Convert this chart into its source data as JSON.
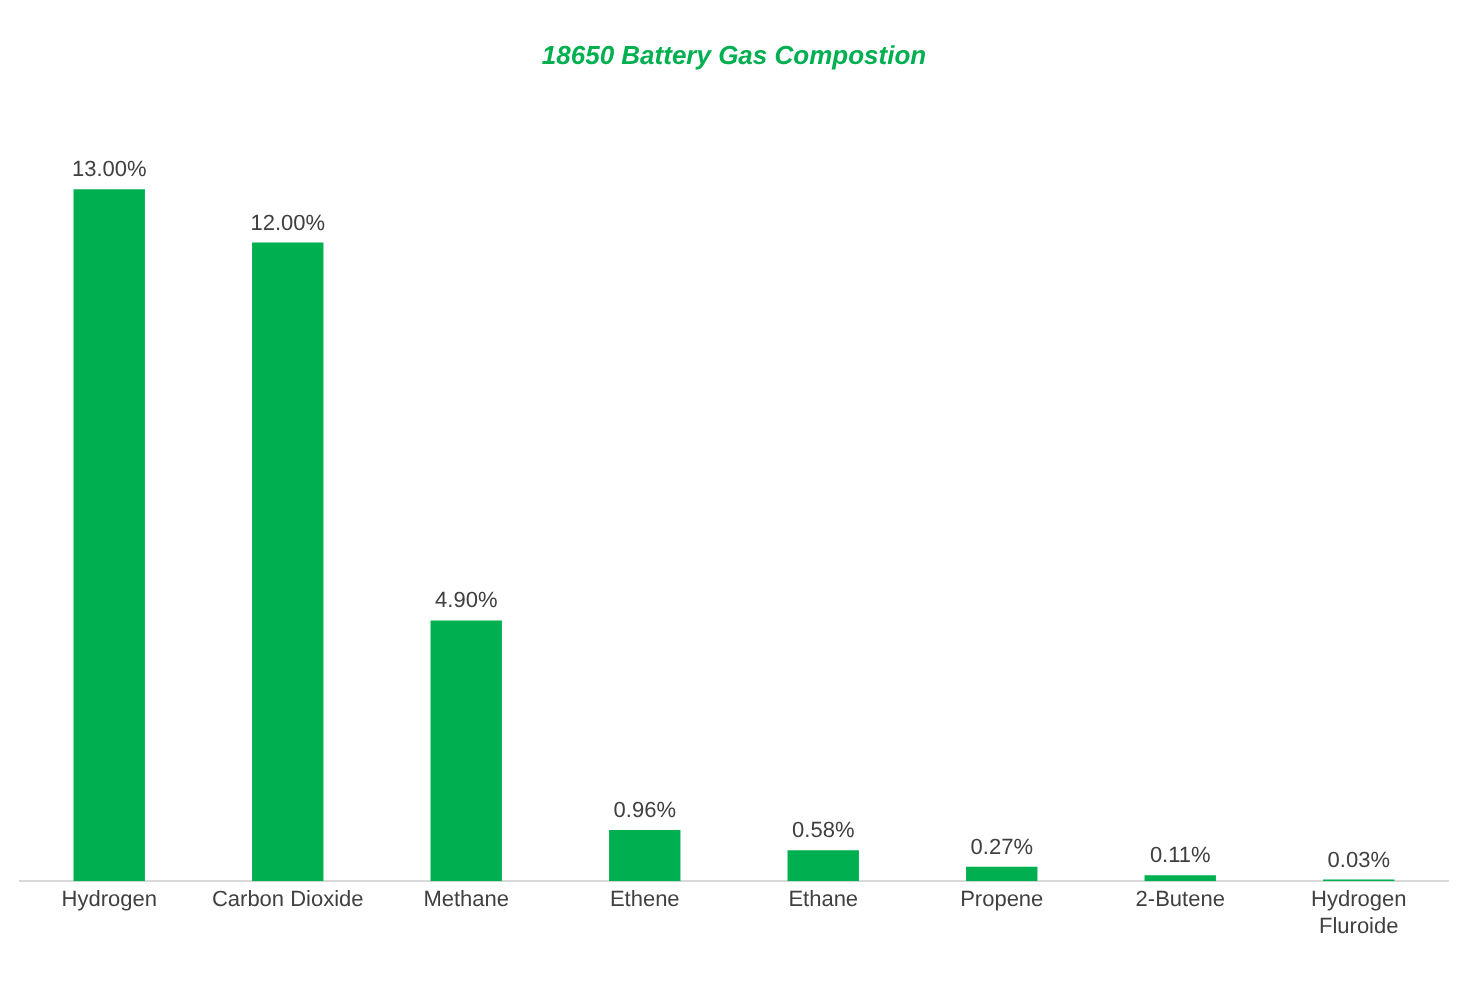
{
  "chart_data": {
    "type": "bar",
    "title": "18650 Battery Gas Compostion",
    "categories": [
      "Hydrogen",
      "Carbon Dioxide",
      "Methane",
      "Ethene",
      "Ethane",
      "Propene",
      "2-Butene",
      "Hydrogen Fluroide"
    ],
    "values": [
      13,
      12,
      4.9,
      0.96,
      0.58,
      0.27,
      0.11,
      0.03
    ],
    "value_labels": [
      "13.00%",
      "12.00%",
      "4.90%",
      "0.96%",
      "0.58%",
      "0.27%",
      "0.11%",
      "0.03%"
    ],
    "color": "#00b050",
    "grid": false,
    "legend": false
  }
}
